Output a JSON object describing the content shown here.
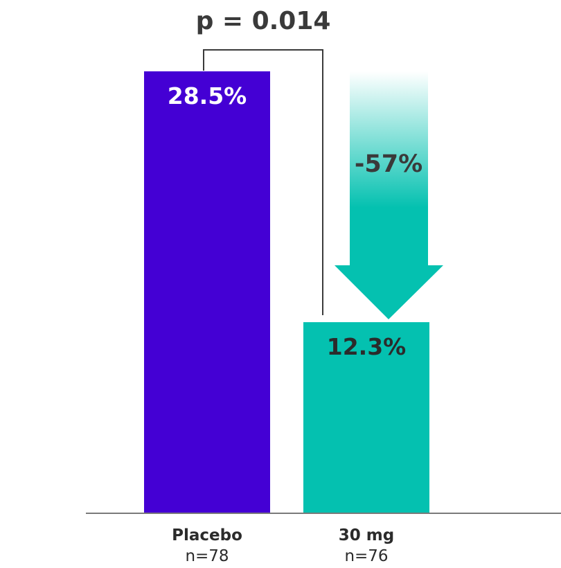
{
  "chart_data": {
    "type": "bar",
    "categories": [
      "Placebo",
      "30 mg"
    ],
    "sample_sizes": [
      "n=78",
      "n=76"
    ],
    "values": [
      28.5,
      12.3
    ],
    "value_labels": [
      "28.5%",
      "12.3%"
    ],
    "colors": [
      "#4400d4",
      "#04c1b0"
    ],
    "ylim": [
      0,
      30
    ],
    "grid": false,
    "annotations": {
      "p_value": "p = 0.014",
      "reduction": "-57%",
      "reduction_color": "#04c1b0"
    }
  }
}
